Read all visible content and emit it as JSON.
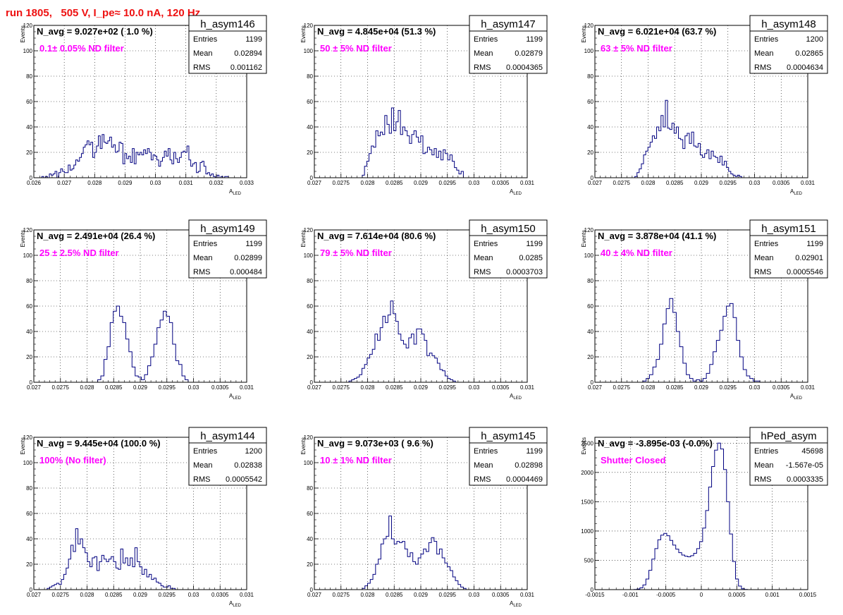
{
  "page": {
    "title": "run 1805,   505 V, I_pe≈ 10.0 nA, 120 Hz"
  },
  "style": {
    "background": "#ffffff",
    "frame": "#000000",
    "grid": "#000000",
    "hist_color": "#000080",
    "title_color": "#ee1111",
    "label_color": "#ff00ff"
  },
  "chart_data": [
    {
      "type": "histogram",
      "name": "h_asym146",
      "navg": "N_avg = 9.027e+02 ( 1.0 %)",
      "label": "0.1± 0.05% ND filter",
      "stats": {
        "entries": "1199",
        "mean": "0.02894",
        "rms": "0.001162"
      },
      "stats_labels": {
        "entries": "Entries",
        "mean": "Mean",
        "rms": "RMS"
      },
      "ylabel": "Events",
      "xlabel_main": "A",
      "xlabel_sub": "LED",
      "xlim": [
        0.026,
        0.033
      ],
      "ylim": [
        0,
        120
      ],
      "xticks": [
        0.026,
        0.027,
        0.028,
        0.029,
        0.03,
        0.031,
        0.032,
        0.033
      ],
      "xtick_labels": [
        "0.026",
        "0.027",
        "0.028",
        "0.029",
        "0.03",
        "0.031",
        "0.032",
        "0.033"
      ],
      "yticks": [
        0,
        20,
        40,
        60,
        80,
        100,
        120
      ],
      "ytick_labels": [
        "0",
        "20",
        "40",
        "60",
        "80",
        "100",
        "120"
      ],
      "edges": [
        0.0262,
        0.0324
      ],
      "counts": [
        0,
        1,
        0,
        1,
        0,
        3,
        2,
        3,
        5,
        0,
        4,
        7,
        5,
        4,
        4,
        10,
        6,
        7,
        10,
        14,
        13,
        16,
        19,
        24,
        26,
        29,
        26,
        28,
        16,
        20,
        25,
        33,
        23,
        34,
        28,
        27,
        29,
        32,
        24,
        26,
        20,
        21,
        28,
        27,
        11,
        19,
        15,
        17,
        12,
        23,
        11,
        20,
        18,
        20,
        18,
        22,
        19,
        23,
        20,
        14,
        18,
        17,
        14,
        9,
        13,
        16,
        21,
        17,
        23,
        14,
        11,
        20,
        15,
        12,
        16,
        20,
        21,
        20,
        25,
        14,
        9,
        11,
        12,
        4,
        5,
        12,
        13,
        9,
        3,
        4,
        2,
        3,
        1,
        0,
        2,
        0,
        1,
        0,
        1,
        1
      ]
    },
    {
      "type": "histogram",
      "name": "h_asym147",
      "navg": "N_avg = 4.845e+04 (51.3 %)",
      "label": "50 ± 5% ND filter",
      "stats": {
        "entries": "1199",
        "mean": "0.02879",
        "rms": "0.0004365"
      },
      "stats_labels": {
        "entries": "Entries",
        "mean": "Mean",
        "rms": "RMS"
      },
      "ylabel": "Events",
      "xlabel_main": "A",
      "xlabel_sub": "LED",
      "xlim": [
        0.027,
        0.031
      ],
      "ylim": [
        0,
        120
      ],
      "xticks": [
        0.027,
        0.0275,
        0.028,
        0.0285,
        0.029,
        0.0295,
        0.03,
        0.0305,
        0.031
      ],
      "xtick_labels": [
        "0.027",
        "0.0275",
        "0.028",
        "0.0285",
        "0.029",
        "0.0295",
        "0.03",
        "0.0305",
        "0.031"
      ],
      "yticks": [
        0,
        20,
        40,
        60,
        80,
        100,
        120
      ],
      "ytick_labels": [
        "0",
        "20",
        "40",
        "60",
        "80",
        "100",
        "120"
      ],
      "edges": [
        0.0279,
        0.0298
      ],
      "counts": [
        2,
        9,
        13,
        19,
        25,
        24,
        37,
        33,
        36,
        34,
        49,
        42,
        35,
        55,
        37,
        44,
        53,
        34,
        40,
        37,
        33,
        27,
        34,
        37,
        32,
        28,
        33,
        19,
        20,
        24,
        22,
        18,
        23,
        16,
        21,
        14,
        22,
        19,
        14,
        18,
        13,
        8,
        6,
        3,
        5
      ]
    },
    {
      "type": "histogram",
      "name": "h_asym148",
      "navg": "N_avg = 6.021e+04 (63.7 %)",
      "label": "63 ± 5% ND filter",
      "stats": {
        "entries": "1200",
        "mean": "0.02865",
        "rms": "0.0004634"
      },
      "stats_labels": {
        "entries": "Entries",
        "mean": "Mean",
        "rms": "RMS"
      },
      "ylabel": "Events",
      "xlabel_main": "A",
      "xlabel_sub": "LED",
      "xlim": [
        0.027,
        0.031
      ],
      "ylim": [
        0,
        120
      ],
      "xticks": [
        0.027,
        0.0275,
        0.028,
        0.0285,
        0.029,
        0.0295,
        0.03,
        0.0305,
        0.031
      ],
      "xtick_labels": [
        "0.027",
        "0.0275",
        "0.028",
        "0.0285",
        "0.029",
        "0.0295",
        "0.03",
        "0.0305",
        "0.031"
      ],
      "yticks": [
        0,
        20,
        40,
        60,
        80,
        100,
        120
      ],
      "ytick_labels": [
        "0",
        "20",
        "40",
        "60",
        "80",
        "100",
        "120"
      ],
      "edges": [
        0.02775,
        0.0298
      ],
      "counts": [
        1,
        4,
        7,
        11,
        18,
        21,
        24,
        28,
        33,
        31,
        40,
        37,
        49,
        40,
        61,
        39,
        38,
        43,
        35,
        40,
        31,
        30,
        23,
        33,
        35,
        27,
        36,
        25,
        24,
        27,
        18,
        16,
        19,
        22,
        15,
        21,
        17,
        16,
        12,
        17,
        10,
        13,
        8,
        5,
        3,
        2,
        1,
        2,
        1,
        0
      ]
    },
    {
      "type": "histogram",
      "name": "h_asym149",
      "navg": "N_avg = 2.491e+04 (26.4 %)",
      "label": "25 ± 2.5% ND filter",
      "stats": {
        "entries": "1199",
        "mean": "0.02899",
        "rms": "0.000484"
      },
      "stats_labels": {
        "entries": "Entries",
        "mean": "Mean",
        "rms": "RMS"
      },
      "ylabel": "Events",
      "xlabel_main": "A",
      "xlabel_sub": "LED",
      "xlim": [
        0.027,
        0.031
      ],
      "ylim": [
        0,
        120
      ],
      "xticks": [
        0.027,
        0.0275,
        0.028,
        0.0285,
        0.029,
        0.0295,
        0.03,
        0.0305,
        0.031
      ],
      "xtick_labels": [
        "0.027",
        "0.0275",
        "0.028",
        "0.0285",
        "0.029",
        "0.0295",
        "0.03",
        "0.0305",
        "0.031"
      ],
      "yticks": [
        0,
        20,
        40,
        60,
        80,
        100,
        120
      ],
      "ytick_labels": [
        "0",
        "20",
        "40",
        "60",
        "80",
        "100",
        "120"
      ],
      "edges": [
        0.0282,
        0.0299
      ],
      "counts": [
        2,
        5,
        18,
        28,
        47,
        56,
        60,
        52,
        47,
        34,
        24,
        12,
        5,
        4,
        2,
        6,
        13,
        20,
        30,
        43,
        49,
        56,
        52,
        47,
        30,
        17,
        14,
        5,
        2
      ]
    },
    {
      "type": "histogram",
      "name": "h_asym150",
      "navg": "N_avg = 7.614e+04 (80.6 %)",
      "label": "79 ± 5% ND filter",
      "stats": {
        "entries": "1199",
        "mean": "0.0285",
        "rms": "0.0003703"
      },
      "stats_labels": {
        "entries": "Entries",
        "mean": "Mean",
        "rms": "RMS"
      },
      "ylabel": "Events",
      "xlabel_main": "A",
      "xlabel_sub": "LED",
      "xlim": [
        0.027,
        0.031
      ],
      "ylim": [
        0,
        120
      ],
      "xticks": [
        0.027,
        0.0275,
        0.028,
        0.0285,
        0.029,
        0.0295,
        0.03,
        0.0305,
        0.031
      ],
      "xtick_labels": [
        "0.027",
        "0.0275",
        "0.028",
        "0.0285",
        "0.029",
        "0.0295",
        "0.03",
        "0.0305",
        "0.031"
      ],
      "yticks": [
        0,
        20,
        40,
        60,
        80,
        100,
        120
      ],
      "ytick_labels": [
        "0",
        "20",
        "40",
        "60",
        "80",
        "100",
        "120"
      ],
      "edges": [
        0.02765,
        0.0297
      ],
      "counts": [
        1,
        2,
        3,
        4,
        6,
        11,
        14,
        19,
        22,
        26,
        38,
        33,
        43,
        52,
        47,
        53,
        64,
        54,
        48,
        38,
        33,
        30,
        27,
        35,
        38,
        30,
        42,
        42,
        38,
        33,
        21,
        23,
        21,
        19,
        15,
        10,
        9,
        5,
        3,
        2,
        1,
        0
      ]
    },
    {
      "type": "histogram",
      "name": "h_asym151",
      "navg": "N_avg = 3.878e+04 (41.1 %)",
      "label": "40 ± 4% ND filter",
      "stats": {
        "entries": "1199",
        "mean": "0.02901",
        "rms": "0.0005546"
      },
      "stats_labels": {
        "entries": "Entries",
        "mean": "Mean",
        "rms": "RMS"
      },
      "ylabel": "Events",
      "xlabel_main": "A",
      "xlabel_sub": "LED",
      "xlim": [
        0.027,
        0.031
      ],
      "ylim": [
        0,
        120
      ],
      "xticks": [
        0.027,
        0.0275,
        0.028,
        0.0285,
        0.029,
        0.0295,
        0.03,
        0.0305,
        0.031
      ],
      "xtick_labels": [
        "0.027",
        "0.0275",
        "0.028",
        "0.0285",
        "0.029",
        "0.0295",
        "0.03",
        "0.0305",
        "0.031"
      ],
      "yticks": [
        0,
        20,
        40,
        60,
        80,
        100,
        120
      ],
      "ytick_labels": [
        "0",
        "20",
        "40",
        "60",
        "80",
        "100",
        "120"
      ],
      "edges": [
        0.0279,
        0.0301
      ],
      "counts": [
        1,
        3,
        6,
        12,
        18,
        30,
        46,
        58,
        66,
        55,
        40,
        28,
        15,
        6,
        3,
        1,
        2,
        1,
        3,
        7,
        14,
        24,
        33,
        41,
        52,
        60,
        62,
        51,
        33,
        20,
        10,
        5,
        3,
        1,
        1
      ]
    },
    {
      "type": "histogram",
      "name": "h_asym144",
      "navg": "N_avg = 9.445e+04 (100.0 %)",
      "label": "100% (No filter)",
      "stats": {
        "entries": "1200",
        "mean": "0.02838",
        "rms": "0.0005542"
      },
      "stats_labels": {
        "entries": "Entries",
        "mean": "Mean",
        "rms": "RMS"
      },
      "ylabel": "Events",
      "xlabel_main": "A",
      "xlabel_sub": "LED",
      "xlim": [
        0.027,
        0.031
      ],
      "ylim": [
        0,
        120
      ],
      "xticks": [
        0.027,
        0.0275,
        0.028,
        0.0285,
        0.029,
        0.0295,
        0.03,
        0.0305,
        0.031
      ],
      "xtick_labels": [
        "0.027",
        "0.0275",
        "0.028",
        "0.0285",
        "0.029",
        "0.0295",
        "0.03",
        "0.0305",
        "0.031"
      ],
      "yticks": [
        0,
        20,
        40,
        60,
        80,
        100,
        120
      ],
      "ytick_labels": [
        "0",
        "20",
        "40",
        "60",
        "80",
        "100",
        "120"
      ],
      "edges": [
        0.02725,
        0.0297
      ],
      "counts": [
        1,
        2,
        3,
        4,
        5,
        4,
        8,
        12,
        17,
        24,
        35,
        30,
        48,
        36,
        40,
        33,
        29,
        22,
        18,
        25,
        26,
        15,
        22,
        27,
        24,
        22,
        24,
        26,
        22,
        17,
        16,
        32,
        21,
        25,
        19,
        25,
        18,
        33,
        22,
        18,
        12,
        16,
        10,
        12,
        8,
        9,
        6,
        5,
        3,
        2,
        2,
        3,
        1,
        1,
        0
      ]
    },
    {
      "type": "histogram",
      "name": "h_asym145",
      "navg": "N_avg = 9.073e+03 ( 9.6 %)",
      "label": "10 ± 1% ND filter",
      "stats": {
        "entries": "1199",
        "mean": "0.02898",
        "rms": "0.0004469"
      },
      "stats_labels": {
        "entries": "Entries",
        "mean": "Mean",
        "rms": "RMS"
      },
      "ylabel": "Events",
      "xlabel_main": "A",
      "xlabel_sub": "LED",
      "xlim": [
        0.027,
        0.031
      ],
      "ylim": [
        0,
        120
      ],
      "xticks": [
        0.027,
        0.0275,
        0.028,
        0.0285,
        0.029,
        0.0295,
        0.03,
        0.0305,
        0.031
      ],
      "xtick_labels": [
        "0.027",
        "0.0275",
        "0.028",
        "0.0285",
        "0.029",
        "0.0295",
        "0.03",
        "0.0305",
        "0.031"
      ],
      "yticks": [
        0,
        20,
        40,
        60,
        80,
        100,
        120
      ],
      "ytick_labels": [
        "0",
        "20",
        "40",
        "60",
        "80",
        "100",
        "120"
      ],
      "edges": [
        0.0279,
        0.0299
      ],
      "counts": [
        1,
        3,
        5,
        8,
        12,
        20,
        24,
        36,
        40,
        42,
        58,
        40,
        36,
        38,
        37,
        38,
        32,
        26,
        29,
        22,
        20,
        25,
        28,
        32,
        30,
        37,
        41,
        38,
        28,
        32,
        25,
        21,
        18,
        15,
        10,
        7,
        4,
        2,
        1,
        0
      ]
    },
    {
      "type": "histogram",
      "name": "hPed_asym",
      "navg": "N_avg = -3.895e-03 (-0.0%)",
      "label": "Shutter Closed",
      "stats": {
        "entries": "45698",
        "mean": "-1.567e-05",
        "rms": "0.0003335"
      },
      "stats_labels": {
        "entries": "Entries",
        "mean": "Mean",
        "rms": "RMS"
      },
      "ylabel": "Events",
      "xlabel_main": "",
      "xlabel_sub": "",
      "xlim": [
        -0.0015,
        0.0015
      ],
      "ylim": [
        0,
        2600
      ],
      "xticks": [
        -0.0015,
        -0.001,
        -0.0005,
        0,
        0.0005,
        0.001,
        0.0015
      ],
      "xtick_labels": [
        "-0.0015",
        "-0.001",
        "-0.0005",
        "0",
        "0.0005",
        "0.001",
        "0.0015"
      ],
      "yticks": [
        0,
        500,
        1000,
        1500,
        2000,
        2500
      ],
      "ytick_labels": [
        "0",
        "500",
        "1000",
        "1500",
        "2000",
        "2500"
      ],
      "edges": [
        -0.00095,
        0.00065
      ],
      "counts": [
        3,
        10,
        30,
        80,
        180,
        330,
        520,
        700,
        850,
        930,
        960,
        920,
        840,
        760,
        690,
        630,
        590,
        570,
        560,
        580,
        620,
        700,
        820,
        1050,
        1350,
        1750,
        2100,
        2380,
        2500,
        2400,
        2050,
        1500,
        950,
        480,
        180,
        60,
        15,
        3
      ]
    }
  ]
}
